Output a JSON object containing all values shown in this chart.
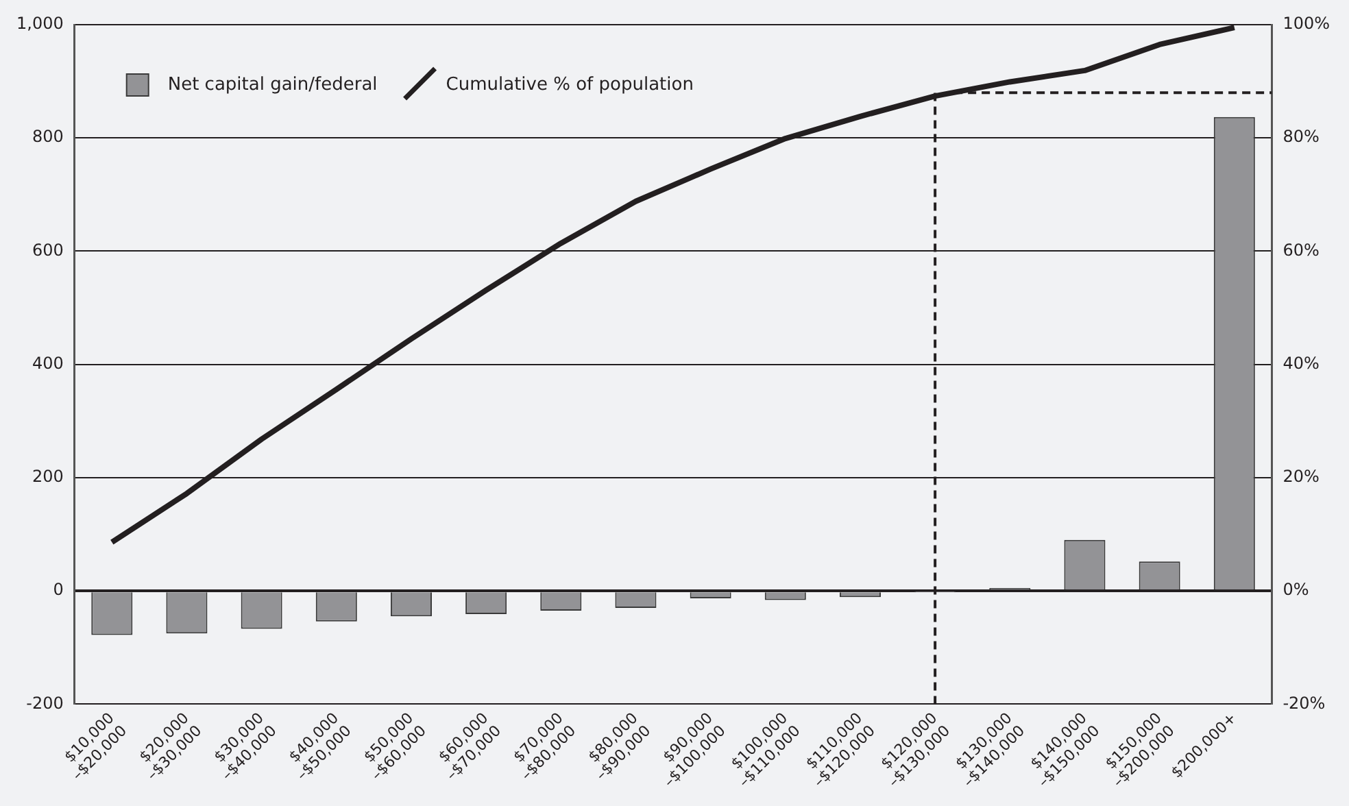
{
  "chart_data": {
    "type": "bar",
    "categories": [
      "$10,000\n–$20,000",
      "$20,000\n–$30,000",
      "$30,000\n–$40,000",
      "$40,000\n–$50,000",
      "$50,000\n–$60,000",
      "$60,000\n–$70,000",
      "$70,000\n–$80,000",
      "$80,000\n–$90,000",
      "$90,000\n–$100,000",
      "$100,000\n–$110,000",
      "$110,000\n–$120,000",
      "$120,000\n–$130,000",
      "$130,000\n–$140,000",
      "$140,000\n–$150,000",
      "$150,000\n–$200,000",
      "$200,000+"
    ],
    "series": [
      {
        "name": "Net capital gain/federal",
        "color": "#939396",
        "values": [
          -78,
          -75,
          -67,
          -54,
          -45,
          -41,
          -35,
          -30,
          -13,
          -16,
          -11,
          -1,
          5,
          90,
          52,
          837
        ]
      },
      {
        "name": "Cumulative % of population",
        "type": "line",
        "axis": "y2",
        "color": "#231f20",
        "values": [
          8.6,
          17.2,
          26.8,
          35.6,
          44.5,
          53.1,
          61.4,
          68.8,
          74.5,
          79.9,
          83.8,
          87.4,
          89.9,
          91.9,
          96.5,
          99.5
        ]
      }
    ],
    "ylim": [
      -200,
      1000
    ],
    "yticks": [
      -200,
      0,
      200,
      400,
      600,
      800,
      {
        "value": 1000,
        "label": "1,000"
      }
    ],
    "y2lim": [
      -20,
      100
    ],
    "y2ticks": [
      {
        "value": -20,
        "label": "-20%"
      },
      {
        "value": 0,
        "label": "0%"
      },
      {
        "value": 20,
        "label": "20%"
      },
      {
        "value": 40,
        "label": "40%"
      },
      {
        "value": 60,
        "label": "60%"
      },
      {
        "value": 80,
        "label": "80%"
      },
      {
        "value": 100,
        "label": "100%"
      }
    ],
    "ref_lines": [
      {
        "axis": "x",
        "value": "$120,000\n–$130,000",
        "line_style": "dashed",
        "color": "#231f20"
      },
      {
        "axis": "y2",
        "value": 88,
        "line_style": "dashed",
        "color": "#231f20"
      }
    ],
    "grid": "y",
    "legend": "top left",
    "marker": "none",
    "line_style": "solid"
  }
}
